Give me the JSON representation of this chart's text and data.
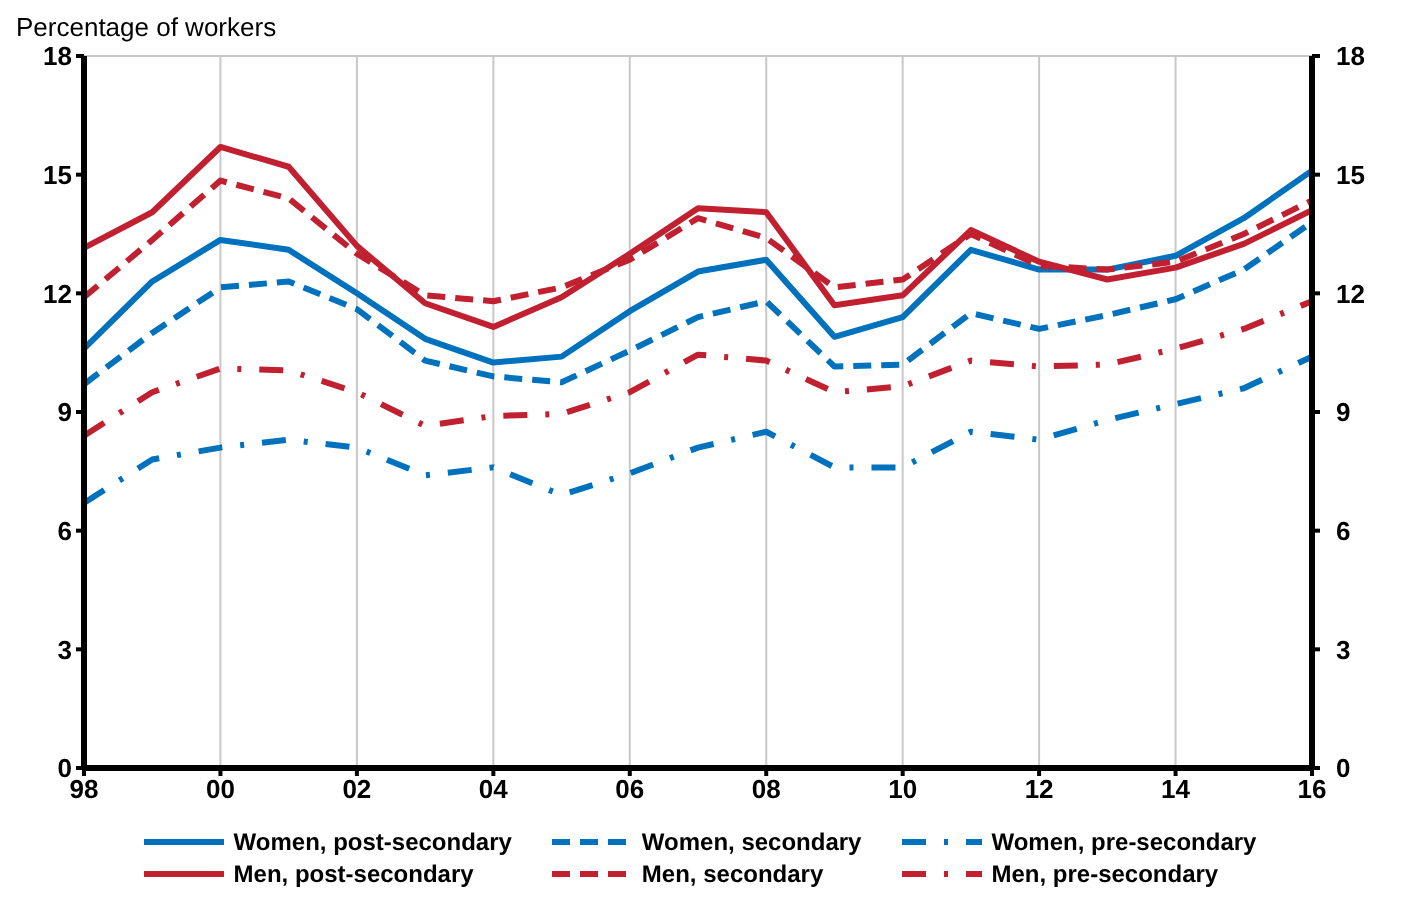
{
  "chart_data": {
    "type": "line",
    "ylabel": "Percentage of workers",
    "x": [
      1998,
      1999,
      2000,
      2001,
      2002,
      2003,
      2004,
      2005,
      2006,
      2007,
      2008,
      2009,
      2010,
      2011,
      2012,
      2013,
      2014,
      2015,
      2016
    ],
    "xlim": [
      1998,
      2016
    ],
    "xticks": [
      {
        "value": 1998,
        "label": "98"
      },
      {
        "value": 2000,
        "label": "00"
      },
      {
        "value": 2002,
        "label": "02"
      },
      {
        "value": 2004,
        "label": "04"
      },
      {
        "value": 2006,
        "label": "06"
      },
      {
        "value": 2008,
        "label": "08"
      },
      {
        "value": 2010,
        "label": "10"
      },
      {
        "value": 2012,
        "label": "12"
      },
      {
        "value": 2014,
        "label": "14"
      },
      {
        "value": 2016,
        "label": "16"
      }
    ],
    "ylim": [
      0,
      18
    ],
    "yticks": [
      0,
      3,
      6,
      9,
      12,
      15,
      18
    ],
    "y2lim": [
      0,
      18
    ],
    "y2ticks": [
      0,
      3,
      6,
      9,
      12,
      15,
      18
    ],
    "grid": true,
    "legend": "bottom",
    "series": [
      {
        "name": "Women, post-secondary",
        "color": "#0071bc",
        "line_style": "solid",
        "values": [
          10.6,
          12.3,
          13.35,
          13.1,
          12.0,
          10.85,
          10.25,
          10.4,
          11.55,
          12.55,
          12.85,
          10.9,
          11.4,
          13.1,
          12.6,
          12.6,
          12.95,
          13.9,
          15.1
        ]
      },
      {
        "name": "Women, secondary",
        "color": "#0071bc",
        "line_style": "dashed",
        "values": [
          9.7,
          11.0,
          12.15,
          12.3,
          11.6,
          10.3,
          9.9,
          9.75,
          10.55,
          11.4,
          11.8,
          10.15,
          10.2,
          11.5,
          11.1,
          11.45,
          11.85,
          12.6,
          13.8
        ]
      },
      {
        "name": "Women, pre-secondary",
        "color": "#0071bc",
        "line_style": "dotted",
        "values": [
          6.7,
          7.8,
          8.1,
          8.3,
          8.1,
          7.4,
          7.6,
          6.9,
          7.45,
          8.1,
          8.5,
          7.6,
          7.6,
          8.5,
          8.3,
          8.8,
          9.2,
          9.6,
          10.4
        ]
      },
      {
        "name": "Men, post-secondary",
        "color": "#c0202f",
        "line_style": "solid",
        "values": [
          13.15,
          14.05,
          15.7,
          15.2,
          13.2,
          11.75,
          11.15,
          11.9,
          13.0,
          14.15,
          14.05,
          11.7,
          11.95,
          13.6,
          12.8,
          12.35,
          12.65,
          13.25,
          14.1
        ]
      },
      {
        "name": "Men, secondary",
        "color": "#c0202f",
        "line_style": "dashed",
        "values": [
          11.9,
          13.35,
          14.85,
          14.4,
          13.0,
          11.95,
          11.8,
          12.15,
          12.85,
          13.9,
          13.4,
          12.15,
          12.35,
          13.5,
          12.7,
          12.6,
          12.8,
          13.5,
          14.35
        ]
      },
      {
        "name": "Men, pre-secondary",
        "color": "#c0202f",
        "line_style": "dotted",
        "values": [
          8.4,
          9.5,
          10.1,
          10.05,
          9.5,
          8.65,
          8.9,
          8.95,
          9.5,
          10.45,
          10.3,
          9.5,
          9.65,
          10.3,
          10.15,
          10.2,
          10.6,
          11.1,
          11.8
        ]
      }
    ]
  }
}
